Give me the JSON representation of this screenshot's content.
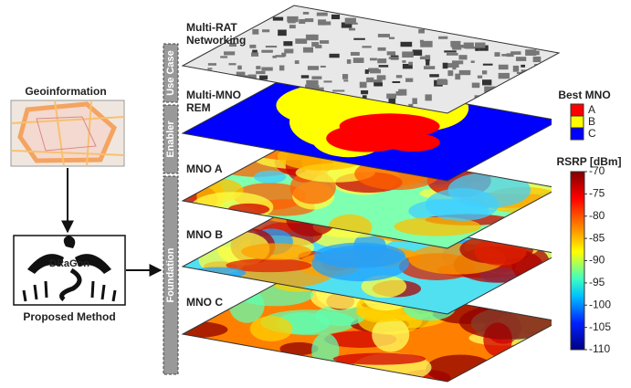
{
  "left": {
    "geo_title": "Geoinformation",
    "method_name": "DRaGon",
    "method_caption": "Proposed Method"
  },
  "stages": [
    "Use Case",
    "Enabler",
    "Foundation"
  ],
  "layers": [
    {
      "lines": [
        "Multi-RAT",
        "Networking"
      ]
    },
    {
      "lines": [
        "Multi-MNO",
        "REM"
      ]
    },
    {
      "lines": [
        "MNO A"
      ]
    },
    {
      "lines": [
        "MNO B"
      ]
    },
    {
      "lines": [
        "MNO C"
      ]
    }
  ],
  "best_mno": {
    "title": "Best MNO",
    "entries": [
      {
        "label": "A",
        "color": "#ff0000"
      },
      {
        "label": "B",
        "color": "#ffff00"
      },
      {
        "label": "C",
        "color": "#0000ff"
      }
    ]
  },
  "colorbar": {
    "title": "RSRP [dBm]",
    "ylim": [
      -110,
      -70
    ],
    "ticks": [
      -70,
      -75,
      -80,
      -85,
      -90,
      -95,
      -100,
      -105,
      -110
    ]
  }
}
